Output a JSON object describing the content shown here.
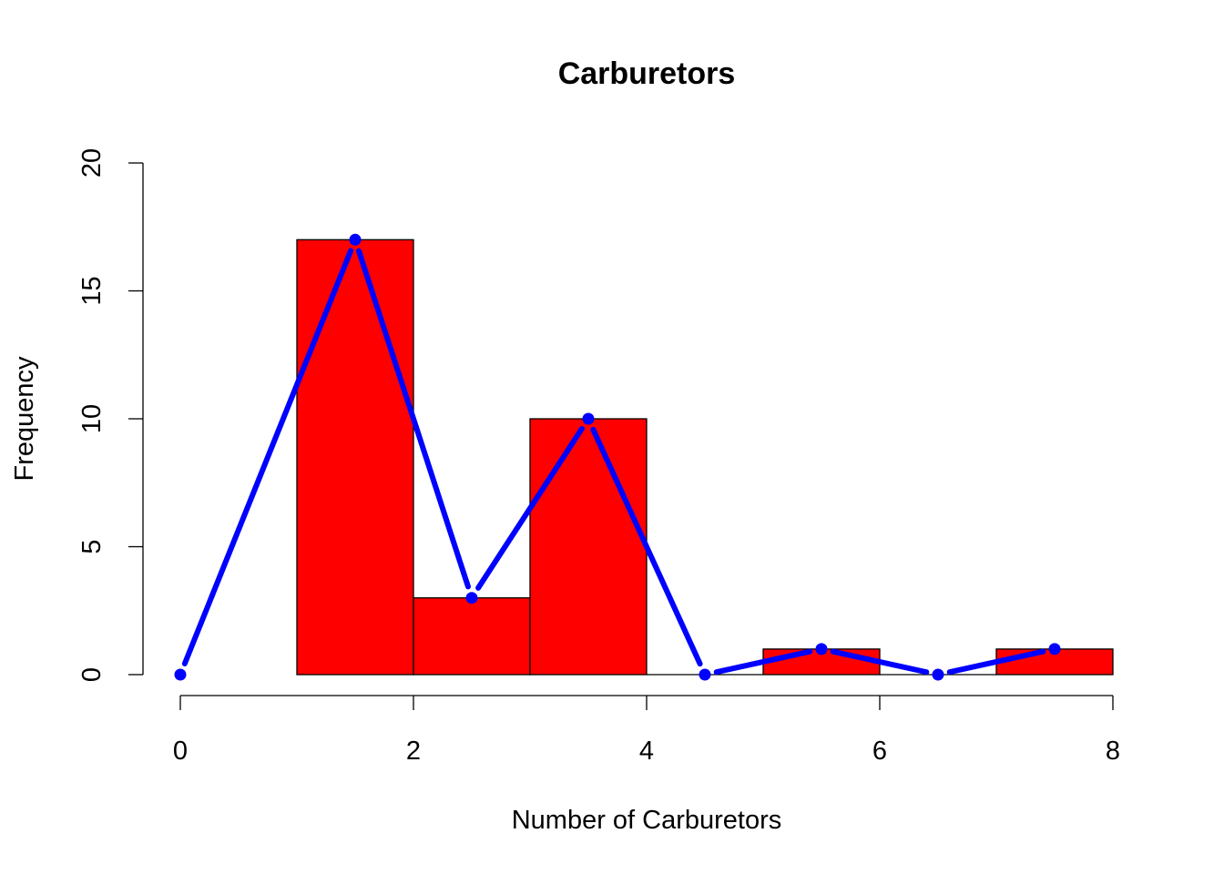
{
  "chart_data": {
    "type": "bar",
    "title": "Carburetors",
    "xlabel": "Number of Carburetors",
    "ylabel": "Frequency",
    "xlim": [
      0,
      8
    ],
    "ylim": [
      0,
      20
    ],
    "x_ticks": [
      0,
      2,
      4,
      6,
      8
    ],
    "y_ticks": [
      0,
      5,
      10,
      15,
      20
    ],
    "bins": [
      {
        "start": 1,
        "end": 2,
        "count": 17
      },
      {
        "start": 2,
        "end": 3,
        "count": 3
      },
      {
        "start": 3,
        "end": 4,
        "count": 10
      },
      {
        "start": 4,
        "end": 5,
        "count": 0
      },
      {
        "start": 5,
        "end": 6,
        "count": 1
      },
      {
        "start": 6,
        "end": 7,
        "count": 0
      },
      {
        "start": 7,
        "end": 8,
        "count": 1
      }
    ],
    "polygon": {
      "x": [
        0,
        1.5,
        2.5,
        3.5,
        4.5,
        5.5,
        6.5,
        7.5
      ],
      "y": [
        0,
        17,
        3,
        10,
        0,
        1,
        0,
        1
      ]
    },
    "grid": false,
    "colors": {
      "bar_fill": "#ff0000",
      "bar_stroke": "#000000",
      "polygon": "#0000ff"
    }
  }
}
